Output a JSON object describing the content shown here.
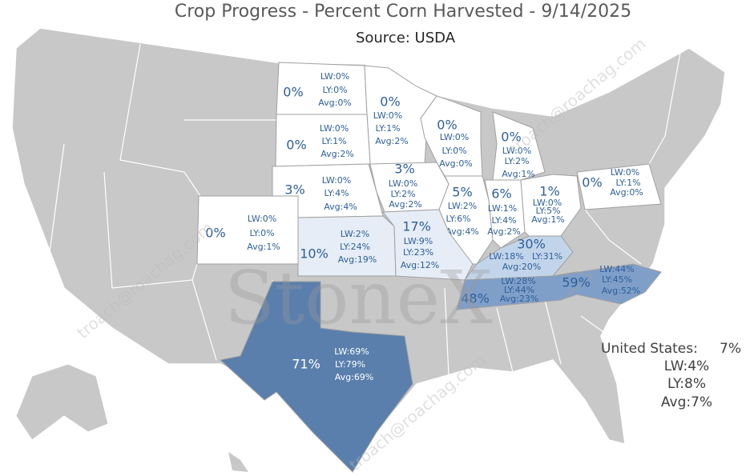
{
  "header": {
    "title": "Crop Progress - Percent Corn Harvested - 9/14/2025",
    "source": "Source: USDA"
  },
  "watermark": {
    "brand": "StoneX",
    "site": "troach@roachag.com"
  },
  "states": [
    {
      "pct": "0%",
      "lw": "LW:0%",
      "ly": "LY:0%",
      "avg": "Avg:0%",
      "color": "#ffffff"
    },
    {
      "pct": "0%",
      "lw": "LW:0%",
      "ly": "LY:1%",
      "avg": "Avg:2%",
      "color": "#ffffff"
    },
    {
      "pct": "0%",
      "lw": "LW:0%",
      "ly": "LY:1%",
      "avg": "Avg:2%",
      "color": "#ffffff"
    },
    {
      "pct": "0%",
      "lw": "LW:0%",
      "ly": "LY:0%",
      "avg": "Avg:0%",
      "color": "#ffffff"
    },
    {
      "pct": "0%",
      "lw": "LW:0%",
      "ly": "LY:2%",
      "avg": "Avg:1%",
      "color": "#ffffff"
    },
    {
      "pct": "0%",
      "lw": "LW:0%",
      "ly": "LY:1%",
      "avg": "Avg:0%",
      "color": "#ffffff"
    },
    {
      "pct": "3%",
      "lw": "LW:0%",
      "ly": "LY:4%",
      "avg": "Avg:4%",
      "color": "#ffffff"
    },
    {
      "pct": "3%",
      "lw": "LW:0%",
      "ly": "LY:2%",
      "avg": "Avg:2%",
      "color": "#ffffff"
    },
    {
      "pct": "5%",
      "lw": "LW:2%",
      "ly": "LY:6%",
      "avg": "Avg:4%",
      "color": "#ffffff"
    },
    {
      "pct": "6%",
      "lw": "LW:1%",
      "ly": "LY:4%",
      "avg": "Avg:2%",
      "color": "#ffffff"
    },
    {
      "pct": "1%",
      "lw": "LW:0%",
      "ly": "LY:5%",
      "avg": "Avg:1%",
      "color": "#ffffff"
    },
    {
      "pct": "0%",
      "lw": "LW:0%",
      "ly": "LY:0%",
      "avg": "Avg:1%",
      "color": "#ffffff"
    },
    {
      "pct": "10%",
      "lw": "LW:2%",
      "ly": "LY:24%",
      "avg": "Avg:19%",
      "color": "#e6edf6"
    },
    {
      "pct": "17%",
      "lw": "LW:9%",
      "ly": "LY:23%",
      "avg": "Avg:12%",
      "color": "#e6edf6"
    },
    {
      "pct": "30%",
      "lw": "LW:18%",
      "ly": "LY:31%",
      "avg": "Avg:20%",
      "color": "#c2d4ea"
    },
    {
      "pct": "48%",
      "lw": "LW:28%",
      "ly": "LY:44%",
      "avg": "Avg:23%",
      "color": "#7f9fc9"
    },
    {
      "pct": "59%",
      "lw": "LW:44%",
      "ly": "LY:45%",
      "avg": "Avg:52%",
      "color": "#7f9fc9"
    },
    {
      "pct": "71%",
      "lw": "LW:69%",
      "ly": "LY:79%",
      "avg": "Avg:69%",
      "color": "#5a7fad"
    }
  ],
  "national": {
    "label": "United States:",
    "pct": "7%",
    "lw": "LW:4%",
    "ly": "LY:8%",
    "avg": "Avg:7%"
  }
}
